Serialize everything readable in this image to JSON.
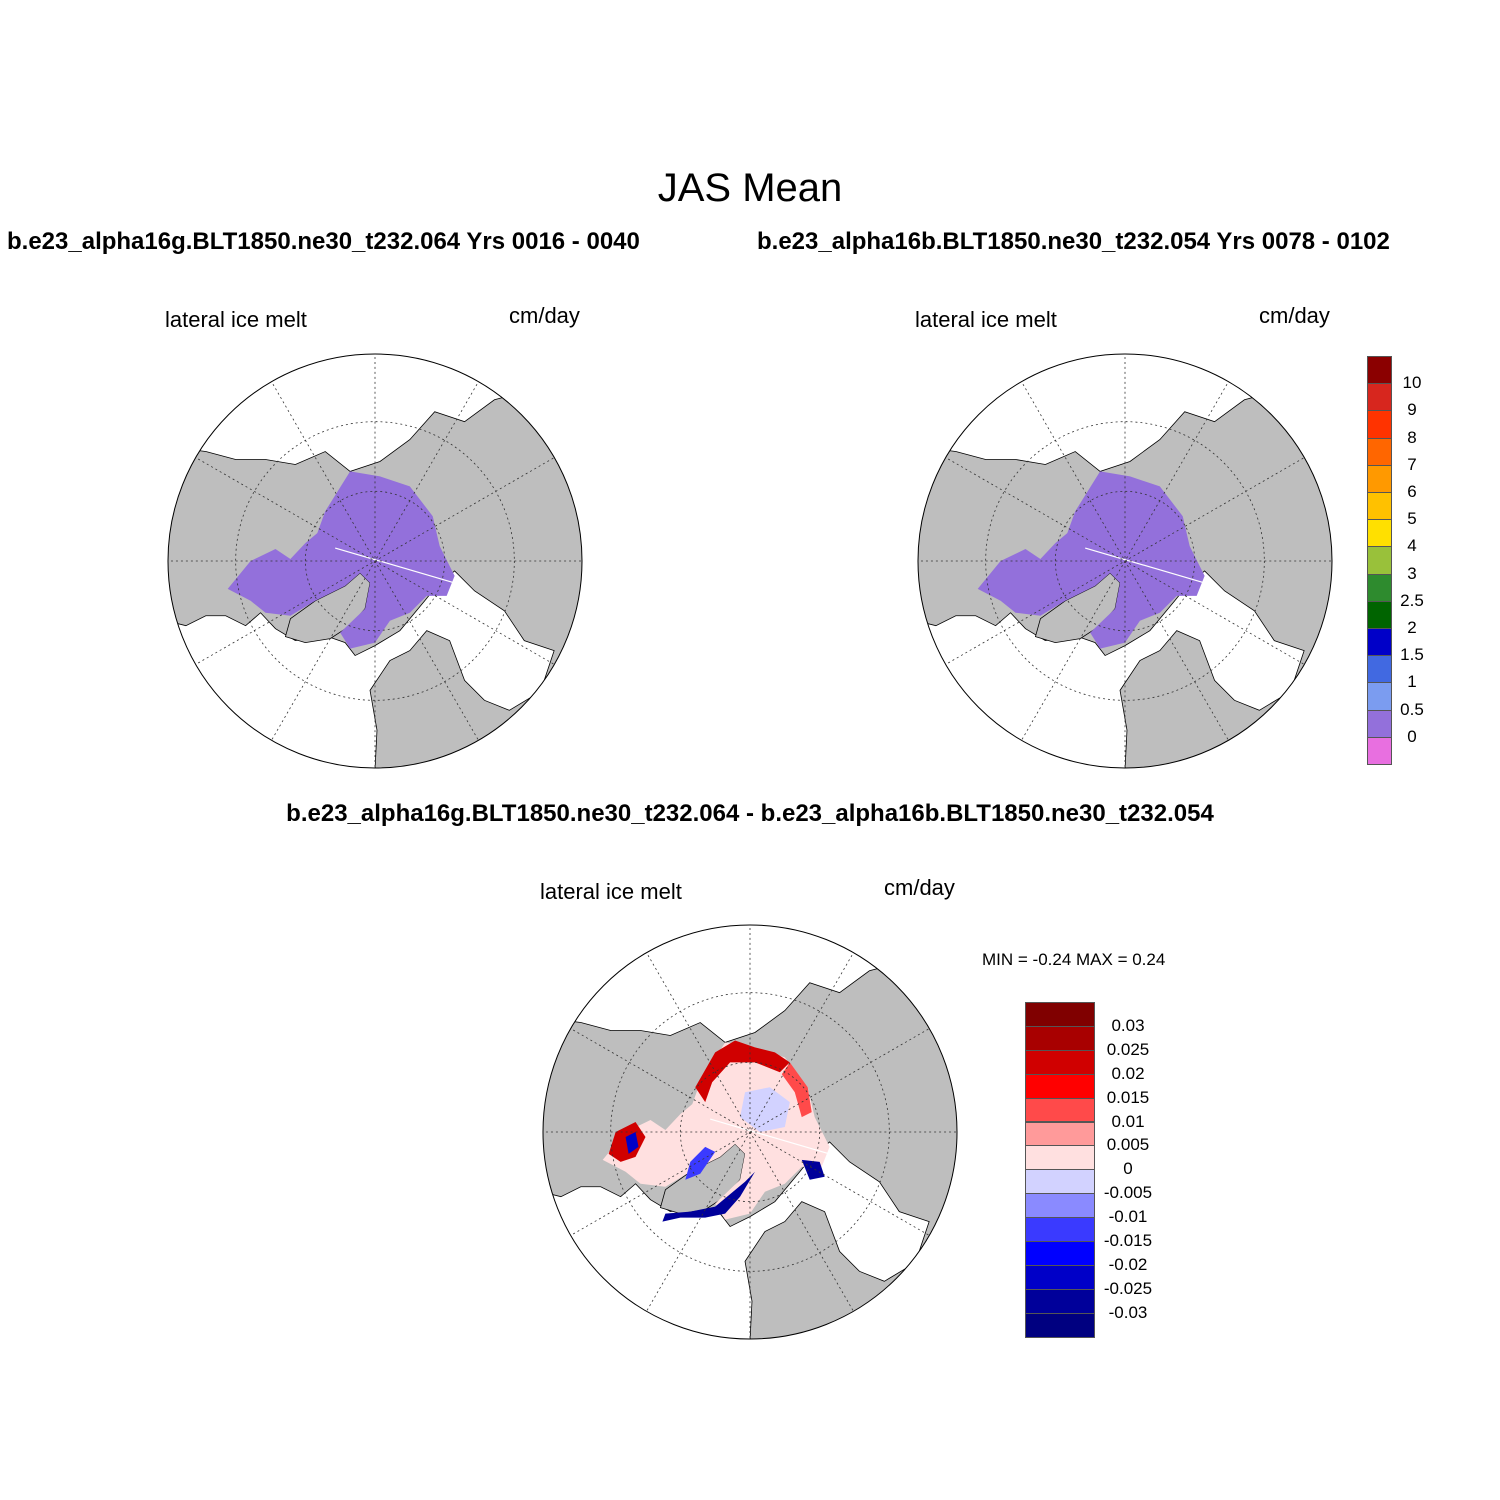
{
  "header": {
    "title": "JAS Mean",
    "case_left": "b.e23_alpha16g.BLT1850.ne30_t232.064  Yrs 0016 - 0040",
    "case_right": "b.e23_alpha16b.BLT1850.ne30_t232.054  Yrs 0078 - 0102",
    "diff_title": "b.e23_alpha16g.BLT1850.ne30_t232.064 - b.e23_alpha16b.BLT1850.ne30_t232.054"
  },
  "panels": {
    "left": {
      "variable": "lateral ice melt",
      "units": "cm/day"
    },
    "right": {
      "variable": "lateral ice melt",
      "units": "cm/day"
    },
    "diff": {
      "variable": "lateral ice melt",
      "units": "cm/day",
      "minmax": "MIN =  -0.24 MAX =   0.24"
    }
  },
  "colors": {
    "land": "#bebebe",
    "ocean": "#ffffff",
    "ice_melt": "#9370db"
  },
  "colorbar_abs": {
    "labels": [
      "10",
      "9",
      "8",
      "7",
      "6",
      "5",
      "4",
      "3",
      "2.5",
      "2",
      "1.5",
      "1",
      "0.5",
      "0"
    ],
    "colors": [
      "#8b0000",
      "#d7261e",
      "#ff3300",
      "#ff6600",
      "#ff9900",
      "#ffc100",
      "#ffe000",
      "#99c13a",
      "#2e8b2e",
      "#006400",
      "#0000c8",
      "#4169e1",
      "#7b9cf0",
      "#9370db",
      "#e86fe0"
    ]
  },
  "colorbar_diff": {
    "labels": [
      "0.03",
      "0.025",
      "0.02",
      "0.015",
      "0.01",
      "0.005",
      "0",
      "-0.005",
      "-0.01",
      "-0.015",
      "-0.02",
      "-0.025",
      "-0.03"
    ],
    "colors": [
      "#800000",
      "#a80000",
      "#d00000",
      "#ff0000",
      "#ff4a4a",
      "#ff9a9a",
      "#ffe0e0",
      "#d2d2ff",
      "#8a8aff",
      "#3a3aff",
      "#0000ff",
      "#0000c8",
      "#00009a",
      "#000080"
    ]
  }
}
